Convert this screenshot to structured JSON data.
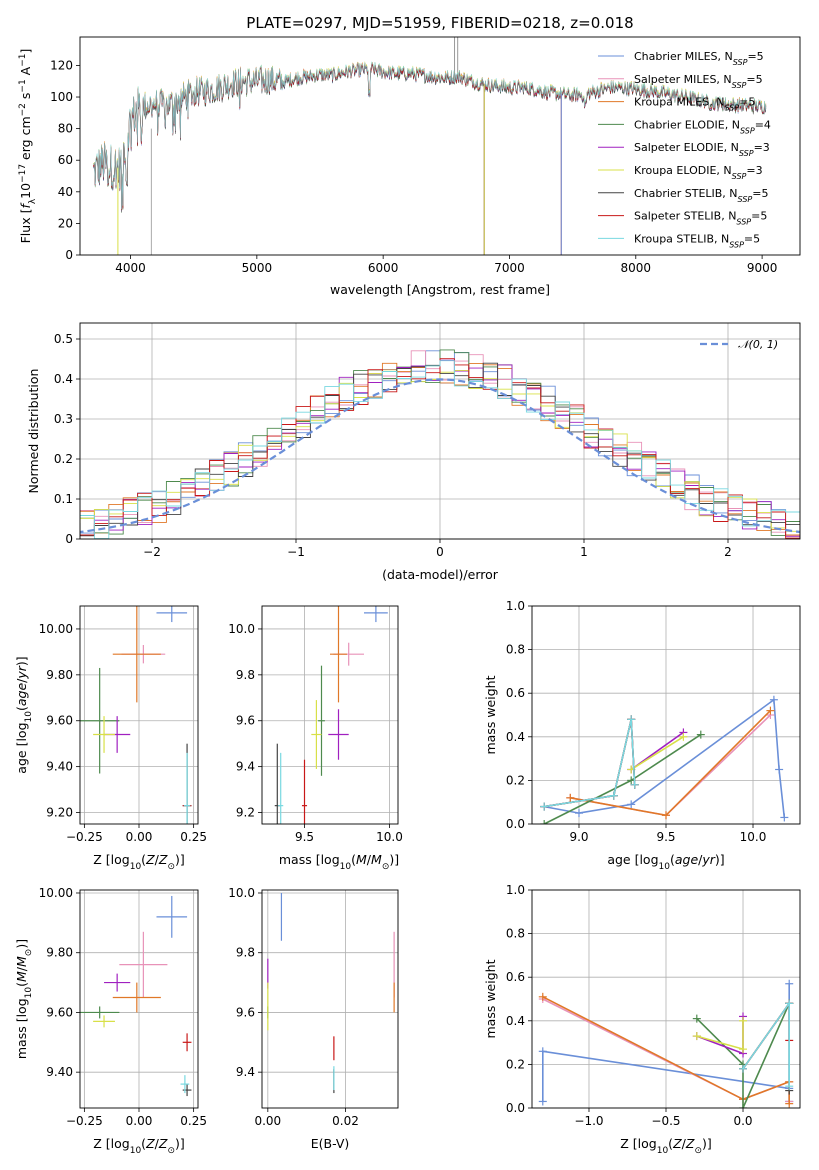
{
  "title": "PLATE=0297, MJD=51959, FIBERID=0218, z=0.018",
  "colors": {
    "Chabrier MILES": "#6a8fd8",
    "Salpeter MILES": "#e892b8",
    "Kroupa MILES": "#e07828",
    "Chabrier ELODIE": "#4e8a4e",
    "Salpeter ELODIE": "#a020c0",
    "Kroupa ELODIE": "#d8e048",
    "Chabrier STELIB": "#444444",
    "Salpeter STELIB": "#c81818",
    "Kroupa STELIB": "#78d8e0",
    "gauss": "#6a8fd8",
    "grid": "#b0b0b0"
  },
  "chart_data": [
    {
      "id": "spectrum",
      "type": "line",
      "xlabel": "wavelength [Angstrom, rest frame]",
      "ylabel": "Flux [fλ10⁻¹⁷ erg cm⁻² s⁻¹ A⁻¹]",
      "xlim": [
        3600,
        9300
      ],
      "ylim": [
        0,
        138
      ],
      "xticks": [
        4000,
        5000,
        6000,
        7000,
        8000,
        9000
      ],
      "yticks": [
        0,
        20,
        40,
        60,
        80,
        100,
        120
      ],
      "legend": "top-right",
      "legend_entries": [
        {
          "main": "Chabrier MILES, N",
          "sub": "SSP",
          "suffix": "=5",
          "key": "Chabrier MILES"
        },
        {
          "main": "Salpeter MILES, N",
          "sub": "SSP",
          "suffix": "=5",
          "key": "Salpeter MILES"
        },
        {
          "main": "Kroupa MILES, N",
          "sub": "SSP",
          "suffix": "=5",
          "key": "Kroupa MILES"
        },
        {
          "main": "Chabrier ELODIE, N",
          "sub": "SSP",
          "suffix": "=4",
          "key": "Chabrier ELODIE"
        },
        {
          "main": "Salpeter ELODIE, N",
          "sub": "SSP",
          "suffix": "=3",
          "key": "Salpeter ELODIE"
        },
        {
          "main": "Kroupa ELODIE, N",
          "sub": "SSP",
          "suffix": "=3",
          "key": "Kroupa ELODIE"
        },
        {
          "main": "Chabrier STELIB, N",
          "sub": "SSP",
          "suffix": "=5",
          "key": "Chabrier STELIB"
        },
        {
          "main": "Salpeter STELIB, N",
          "sub": "SSP",
          "suffix": "=5",
          "key": "Salpeter STELIB"
        },
        {
          "main": "Kroupa STELIB, N",
          "sub": "SSP",
          "suffix": "=5",
          "key": "Kroupa STELIB"
        }
      ],
      "continuum": [
        [
          3700,
          52
        ],
        [
          3780,
          58
        ],
        [
          3850,
          56
        ],
        [
          3920,
          55
        ],
        [
          3960,
          72
        ],
        [
          4000,
          85
        ],
        [
          4050,
          92
        ],
        [
          4100,
          94
        ],
        [
          4200,
          96
        ],
        [
          4300,
          95
        ],
        [
          4400,
          99
        ],
        [
          4500,
          103
        ],
        [
          4600,
          104
        ],
        [
          4700,
          106
        ],
        [
          4800,
          109
        ],
        [
          4900,
          110
        ],
        [
          5000,
          110
        ],
        [
          5100,
          111
        ],
        [
          5200,
          109
        ],
        [
          5300,
          112
        ],
        [
          5400,
          113
        ],
        [
          5500,
          114
        ],
        [
          5600,
          114
        ],
        [
          5700,
          116
        ],
        [
          5800,
          117
        ],
        [
          5900,
          118
        ],
        [
          6000,
          116
        ],
        [
          6100,
          115
        ],
        [
          6200,
          115
        ],
        [
          6300,
          114
        ],
        [
          6400,
          113
        ],
        [
          6500,
          112
        ],
        [
          6600,
          113
        ],
        [
          6700,
          110
        ],
        [
          6800,
          108
        ],
        [
          6900,
          107
        ],
        [
          7000,
          106
        ],
        [
          7100,
          106
        ],
        [
          7200,
          105
        ],
        [
          7300,
          103
        ],
        [
          7400,
          102
        ],
        [
          7500,
          101
        ],
        [
          7600,
          102
        ],
        [
          7700,
          104
        ],
        [
          7800,
          106
        ],
        [
          7900,
          106
        ],
        [
          8000,
          105
        ],
        [
          8200,
          103
        ],
        [
          8400,
          100
        ],
        [
          8600,
          96
        ],
        [
          8800,
          95
        ],
        [
          9000,
          94
        ]
      ],
      "model_cutoffs": [
        {
          "key": "Kroupa ELODIE",
          "x": 3900
        },
        {
          "key": "Chabrier ELODIE",
          "x": 6800
        },
        {
          "key": "Salpeter ELODIE",
          "x": 6800
        },
        {
          "key": "Kroupa ELODIE",
          "x": 6800
        },
        {
          "key": "Kroupa MILES",
          "x": 7410
        },
        {
          "key": "Salpeter MILES",
          "x": 7410
        },
        {
          "key": "Chabrier MILES",
          "x": 7410
        }
      ]
    },
    {
      "id": "residuals",
      "type": "line",
      "xlabel": "(data-model)/error",
      "ylabel": "Normed distribution",
      "xlim": [
        -2.5,
        2.5
      ],
      "ylim": [
        0,
        0.54
      ],
      "xticks": [
        -2,
        -1,
        0,
        1,
        2
      ],
      "yticks": [
        0.0,
        0.1,
        0.2,
        0.3,
        0.4,
        0.5
      ],
      "legend": "top-right",
      "gauss_label": "𝒩(0, 1)",
      "bin_width": 0.1
    },
    {
      "id": "age_vs_Z",
      "type": "scatter",
      "xlabel": "Z [log₁₀(Z/Z☉)]",
      "ylabel": "age  [log₁₀(age/yr)]",
      "xlim": [
        -0.27,
        0.27
      ],
      "ylim": [
        9.15,
        10.1
      ],
      "xticks": [
        -0.25,
        0.0,
        0.25
      ],
      "yticks": [
        9.2,
        9.4,
        9.6,
        9.8,
        10.0
      ],
      "points": [
        {
          "key": "Chabrier MILES",
          "x": 0.15,
          "y": 10.07,
          "ex": 0.07,
          "ey": 0.04
        },
        {
          "key": "Salpeter MILES",
          "x": 0.02,
          "y": 9.89,
          "ex": 0.1,
          "ey": 0.04
        },
        {
          "key": "Kroupa MILES",
          "x": -0.01,
          "y": 9.89,
          "ex": 0.11,
          "ey": 0.21
        },
        {
          "key": "Chabrier ELODIE",
          "x": -0.18,
          "y": 9.6,
          "ex": 0.09,
          "ey": 0.23
        },
        {
          "key": "Salpeter ELODIE",
          "x": -0.1,
          "y": 9.54,
          "ex": 0.06,
          "ey": 0.08
        },
        {
          "key": "Kroupa ELODIE",
          "x": -0.16,
          "y": 9.54,
          "ex": 0.05,
          "ey": 0.08
        },
        {
          "key": "Chabrier STELIB",
          "x": 0.22,
          "y": 9.23,
          "ex": 0.02,
          "ey": 0.27
        },
        {
          "key": "Salpeter STELIB",
          "x": 0.22,
          "y": 9.23,
          "ex": 0.02,
          "ey": 0.0
        },
        {
          "key": "Kroupa STELIB",
          "x": 0.22,
          "y": 9.23,
          "ex": 0.015,
          "ey": 0.23
        }
      ]
    },
    {
      "id": "age_vs_mass",
      "type": "scatter",
      "xlabel": "mass [log₁₀(M/M☉)]",
      "ylabel": "",
      "xlim": [
        9.25,
        10.05
      ],
      "ylim": [
        9.15,
        10.1
      ],
      "xticks": [
        9.5,
        10.0
      ],
      "yticks": [
        9.2,
        9.4,
        9.6,
        9.8,
        10.0
      ],
      "points": [
        {
          "key": "Chabrier MILES",
          "x": 9.92,
          "y": 10.07,
          "ex": 0.07,
          "ey": 0.04
        },
        {
          "key": "Salpeter MILES",
          "x": 9.76,
          "y": 9.89,
          "ex": 0.09,
          "ey": 0.05
        },
        {
          "key": "Kroupa MILES",
          "x": 9.7,
          "y": 9.89,
          "ex": 0.05,
          "ey": 0.21
        },
        {
          "key": "Chabrier ELODIE",
          "x": 9.6,
          "y": 9.6,
          "ex": 0.02,
          "ey": 0.24
        },
        {
          "key": "Salpeter ELODIE",
          "x": 9.7,
          "y": 9.54,
          "ex": 0.06,
          "ey": 0.11
        },
        {
          "key": "Kroupa ELODIE",
          "x": 9.57,
          "y": 9.54,
          "ex": 0.03,
          "ey": 0.15
        },
        {
          "key": "Chabrier STELIB",
          "x": 9.34,
          "y": 9.23,
          "ex": 0.015,
          "ey": 0.27
        },
        {
          "key": "Salpeter STELIB",
          "x": 9.5,
          "y": 9.23,
          "ex": 0.015,
          "ey": 0.2
        },
        {
          "key": "Kroupa STELIB",
          "x": 9.36,
          "y": 9.23,
          "ex": 0.015,
          "ey": 0.23
        }
      ]
    },
    {
      "id": "weight_vs_age",
      "type": "line",
      "xlabel": "age  [log₁₀(age/yr)]",
      "ylabel": "mass weight",
      "xlim": [
        8.73,
        10.27
      ],
      "ylim": [
        0,
        1.0
      ],
      "xticks": [
        9.0,
        9.5,
        10.0
      ],
      "yticks": [
        0.0,
        0.2,
        0.4,
        0.6,
        0.8,
        1.0
      ],
      "series": [
        {
          "key": "Chabrier MILES",
          "x": [
            8.8,
            9.0,
            9.3,
            10.12,
            10.15,
            10.18
          ],
          "y": [
            0.08,
            0.05,
            0.09,
            0.57,
            0.25,
            0.03
          ]
        },
        {
          "key": "Salpeter MILES",
          "x": [
            8.95,
            9.5,
            10.1
          ],
          "y": [
            0.12,
            0.04,
            0.5
          ]
        },
        {
          "key": "Kroupa MILES",
          "x": [
            8.95,
            9.5,
            10.1
          ],
          "y": [
            0.12,
            0.04,
            0.52
          ]
        },
        {
          "key": "Chabrier ELODIE",
          "x": [
            8.8,
            9.3,
            9.7
          ],
          "y": [
            0.0,
            0.2,
            0.41
          ]
        },
        {
          "key": "Salpeter ELODIE",
          "x": [
            9.3,
            9.6
          ],
          "y": [
            0.25,
            0.42
          ]
        },
        {
          "key": "Kroupa ELODIE",
          "x": [
            9.3,
            9.6
          ],
          "y": [
            0.25,
            0.4
          ]
        },
        {
          "key": "Chabrier STELIB",
          "x": [
            8.8,
            9.2,
            9.3,
            9.32
          ],
          "y": [
            0.08,
            0.13,
            0.48,
            0.18
          ]
        },
        {
          "key": "Salpeter STELIB",
          "x": [
            8.8,
            9.2,
            9.3,
            9.32
          ],
          "y": [
            0.08,
            0.13,
            0.48,
            0.18
          ]
        },
        {
          "key": "Kroupa STELIB",
          "x": [
            8.8,
            9.2,
            9.3,
            9.32
          ],
          "y": [
            0.08,
            0.13,
            0.48,
            0.18
          ]
        }
      ]
    },
    {
      "id": "mass_vs_Z",
      "type": "scatter",
      "xlabel": "Z [log₁₀(Z/Z☉)]",
      "ylabel": "mass [log₁₀(M/M☉)]",
      "xlim": [
        -0.27,
        0.27
      ],
      "ylim": [
        9.28,
        10.01
      ],
      "xticks": [
        -0.25,
        0.0,
        0.25
      ],
      "yticks": [
        9.4,
        9.6,
        9.8,
        10.0
      ],
      "points": [
        {
          "key": "Chabrier MILES",
          "x": 0.15,
          "y": 9.92,
          "ex": 0.07,
          "ey": 0.07
        },
        {
          "key": "Salpeter MILES",
          "x": 0.02,
          "y": 9.76,
          "ex": 0.11,
          "ey": 0.11
        },
        {
          "key": "Kroupa MILES",
          "x": -0.01,
          "y": 9.65,
          "ex": 0.11,
          "ey": 0.05
        },
        {
          "key": "Chabrier ELODIE",
          "x": -0.18,
          "y": 9.6,
          "ex": 0.09,
          "ey": 0.02
        },
        {
          "key": "Salpeter ELODIE",
          "x": -0.1,
          "y": 9.7,
          "ex": 0.06,
          "ey": 0.03
        },
        {
          "key": "Kroupa ELODIE",
          "x": -0.16,
          "y": 9.57,
          "ex": 0.05,
          "ey": 0.02
        },
        {
          "key": "Chabrier STELIB",
          "x": 0.22,
          "y": 9.34,
          "ex": 0.02,
          "ey": 0.02
        },
        {
          "key": "Salpeter STELIB",
          "x": 0.22,
          "y": 9.5,
          "ex": 0.02,
          "ey": 0.03
        },
        {
          "key": "Kroupa STELIB",
          "x": 0.21,
          "y": 9.36,
          "ex": 0.02,
          "ey": 0.03
        }
      ]
    },
    {
      "id": "mass_vs_ebv",
      "type": "scatter",
      "xlabel": "E(B-V)",
      "ylabel": "",
      "xlim": [
        -0.0015,
        0.0335
      ],
      "ylim": [
        9.28,
        10.01
      ],
      "xticks": [
        0.0,
        0.02
      ],
      "yticks": [
        9.4,
        9.6,
        9.8,
        10.0
      ],
      "points": [
        {
          "key": "Chabrier MILES",
          "x": 0.0035,
          "y": 9.92,
          "ex": 0.0,
          "ey": 0.08
        },
        {
          "key": "Salpeter MILES",
          "x": 0.0325,
          "y": 9.76,
          "ex": 0.0,
          "ey": 0.11
        },
        {
          "key": "Kroupa MILES",
          "x": 0.0325,
          "y": 9.65,
          "ex": 0.0,
          "ey": 0.05
        },
        {
          "key": "Chabrier ELODIE",
          "x": 0.0,
          "y": 9.6,
          "ex": 0.0,
          "ey": 0.02
        },
        {
          "key": "Salpeter ELODIE",
          "x": 0.0,
          "y": 9.73,
          "ex": 0.0,
          "ey": 0.05
        },
        {
          "key": "Kroupa ELODIE",
          "x": 0.0,
          "y": 9.62,
          "ex": 0.0,
          "ey": 0.08
        },
        {
          "key": "Chabrier STELIB",
          "x": 0.017,
          "y": 9.37,
          "ex": 0.0,
          "ey": 0.04
        },
        {
          "key": "Salpeter STELIB",
          "x": 0.017,
          "y": 9.48,
          "ex": 0.0,
          "ey": 0.04
        },
        {
          "key": "Kroupa STELIB",
          "x": 0.017,
          "y": 9.38,
          "ex": 0.0,
          "ey": 0.04
        }
      ]
    },
    {
      "id": "weight_vs_Z",
      "type": "line",
      "xlabel": "Z [log₁₀(Z/Z☉)]",
      "ylabel": "mass weight",
      "xlim": [
        -1.37,
        0.37
      ],
      "ylim": [
        0,
        1.0
      ],
      "xticks": [
        -1.0,
        -0.5,
        0.0
      ],
      "yticks": [
        0.0,
        0.2,
        0.4,
        0.6,
        0.8,
        1.0
      ],
      "series": [
        {
          "key": "Chabrier MILES",
          "x": [
            -1.3,
            -1.3,
            0.3,
            0.3,
            0.3
          ],
          "y": [
            0.03,
            0.26,
            0.09,
            0.57,
            0.03
          ]
        },
        {
          "key": "Salpeter MILES",
          "x": [
            -1.3,
            0.0,
            0.3,
            0.3
          ],
          "y": [
            0.5,
            0.04,
            0.12,
            0.03
          ]
        },
        {
          "key": "Kroupa MILES",
          "x": [
            -1.3,
            0.0,
            0.3,
            0.3
          ],
          "y": [
            0.51,
            0.04,
            0.12,
            0.02
          ]
        },
        {
          "key": "Chabrier ELODIE",
          "x": [
            -0.3,
            0.0,
            0.0,
            0.3
          ],
          "y": [
            0.41,
            0.2,
            0.0,
            0.48
          ]
        },
        {
          "key": "Salpeter ELODIE",
          "x": [
            -0.3,
            0.0,
            0.0
          ],
          "y": [
            0.33,
            0.25,
            0.42
          ]
        },
        {
          "key": "Kroupa ELODIE",
          "x": [
            -0.3,
            0.0,
            0.0
          ],
          "y": [
            0.33,
            0.27,
            0.4
          ]
        },
        {
          "key": "Chabrier STELIB",
          "x": [
            0.0,
            0.3,
            0.3
          ],
          "y": [
            0.18,
            0.48,
            0.08
          ]
        },
        {
          "key": "Salpeter STELIB",
          "x": [
            0.0,
            0.3,
            0.3
          ],
          "y": [
            0.18,
            0.48,
            0.31
          ]
        },
        {
          "key": "Kroupa STELIB",
          "x": [
            0.0,
            0.3,
            0.3
          ],
          "y": [
            0.18,
            0.48,
            0.1
          ]
        }
      ]
    }
  ]
}
